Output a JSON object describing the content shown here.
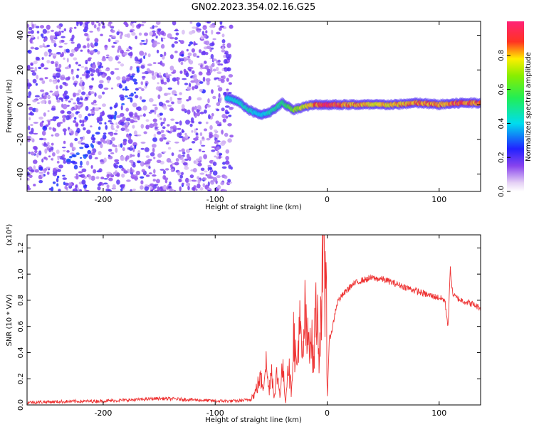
{
  "title": "GN02.2023.354.02.16.G25",
  "colorbar": {
    "label": "Normalized spectral amplitude",
    "ticks": [
      "0.0",
      "0.2",
      "0.4",
      "0.6",
      "0.8"
    ],
    "tick_values": [
      0.0,
      0.2,
      0.4,
      0.6,
      0.8
    ],
    "range": [
      0,
      1
    ]
  },
  "chart_data": [
    {
      "type": "heatmap",
      "xlabel": "Height of straight line (km)",
      "ylabel": "Frequency (Hz)",
      "xlim": [
        -268,
        137
      ],
      "ylim": [
        -50,
        48
      ],
      "xticks": [
        "-200",
        "-100",
        "0",
        "100"
      ],
      "xtick_values": [
        -200,
        -100,
        0,
        100
      ],
      "yticks": [
        "-40",
        "-20",
        "0",
        "20",
        "40"
      ],
      "ytick_values": [
        -40,
        -20,
        0,
        20,
        40
      ],
      "noise_region_x": [
        -268,
        -85
      ],
      "diagonal_trend": {
        "x": [
          -240,
          -175
        ],
        "y": [
          -45,
          10
        ]
      },
      "signal_trace": {
        "x": [
          -90,
          -80,
          -70,
          -60,
          -50,
          -40,
          -30,
          -20,
          -10,
          0,
          20,
          40,
          60,
          80,
          100,
          120,
          137
        ],
        "y": [
          4,
          2,
          -3,
          -6,
          -4,
          1,
          -3,
          -1,
          0,
          0,
          0,
          0,
          0,
          1,
          0,
          1,
          1
        ],
        "amplitude": [
          0.45,
          0.45,
          0.5,
          0.4,
          0.5,
          0.55,
          0.7,
          0.8,
          0.9,
          1.0,
          0.9,
          0.85,
          0.85,
          0.9,
          0.9,
          0.95,
          0.9
        ]
      }
    },
    {
      "type": "line",
      "xlabel": "Height of straight line (km)",
      "ylabel": "SNR (10 * V/V)",
      "y_multiplier": "(x10⁴)",
      "xlim": [
        -268,
        137
      ],
      "ylim": [
        0,
        1.3
      ],
      "xticks": [
        "-200",
        "-100",
        "0",
        "100"
      ],
      "xtick_values": [
        -200,
        -100,
        0,
        100
      ],
      "yticks": [
        "0.0",
        "0.2",
        "0.4",
        "0.6",
        "0.8",
        "1.0",
        "1.2"
      ],
      "ytick_values": [
        0.0,
        0.2,
        0.4,
        0.6,
        0.8,
        1.0,
        1.2
      ],
      "color": "#ee3333",
      "series": [
        {
          "x": [
            -268,
            -240,
            -200,
            -170,
            -150,
            -120,
            -100,
            -80,
            -70,
            -65,
            -60,
            -57,
            -55,
            -52,
            -50,
            -47,
            -45,
            -42,
            -40,
            -37,
            -35,
            -32,
            -30,
            -27,
            -25,
            -22,
            -20,
            -18,
            -15,
            -12,
            -10,
            -7,
            -5,
            -3,
            -2,
            -1,
            0,
            2,
            5,
            8,
            10,
            15,
            20,
            25,
            30,
            40,
            50,
            60,
            70,
            80,
            90,
            100,
            105,
            108,
            110,
            112,
            115,
            120,
            130,
            137
          ],
          "y": [
            0.02,
            0.025,
            0.03,
            0.04,
            0.05,
            0.04,
            0.03,
            0.03,
            0.04,
            0.08,
            0.2,
            0.15,
            0.35,
            0.1,
            0.3,
            0.05,
            0.25,
            0.08,
            0.3,
            0.02,
            0.35,
            0.1,
            0.55,
            0.25,
            0.65,
            0.3,
            0.7,
            0.45,
            0.6,
            0.3,
            0.8,
            0.4,
            0.9,
            1.0,
            0.75,
            1.3,
            0.05,
            0.5,
            0.6,
            0.75,
            0.8,
            0.85,
            0.9,
            0.93,
            0.95,
            0.97,
            0.96,
            0.93,
            0.9,
            0.87,
            0.84,
            0.82,
            0.8,
            0.6,
            1.05,
            0.85,
            0.82,
            0.8,
            0.77,
            0.74
          ]
        }
      ]
    }
  ]
}
